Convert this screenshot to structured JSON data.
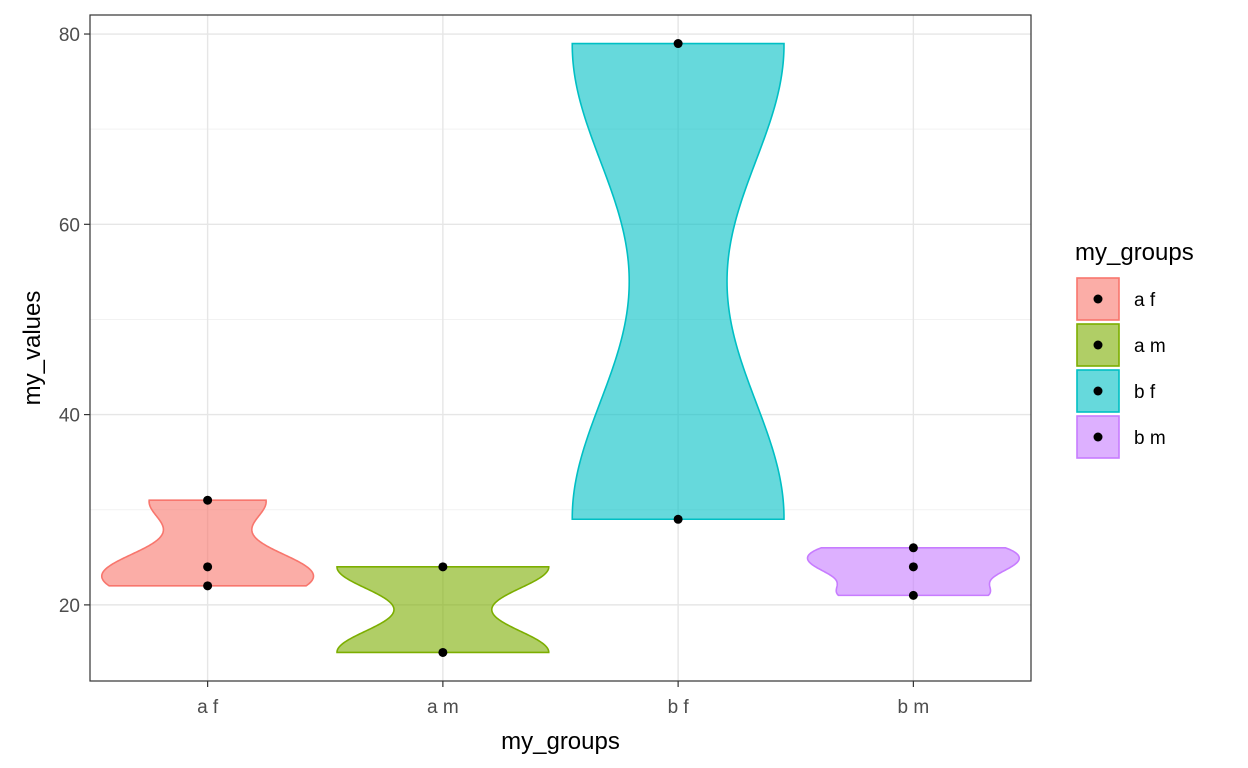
{
  "chart_data": {
    "type": "violin",
    "xlabel": "my_groups",
    "ylabel": "my_values",
    "ylim": [
      12,
      82
    ],
    "yticks": [
      20,
      40,
      60,
      80
    ],
    "grid": true,
    "legend_position": "right",
    "legend_title": "my_groups",
    "categories": [
      "a f",
      "a m",
      "b f",
      "b m"
    ],
    "series": [
      {
        "name": "a f",
        "color": "#F8766D",
        "values": [
          22,
          24,
          31
        ]
      },
      {
        "name": "a m",
        "color": "#7CAE00",
        "values": [
          15,
          24
        ]
      },
      {
        "name": "b f",
        "color": "#00BFC4",
        "values": [
          29,
          79
        ]
      },
      {
        "name": "b m",
        "color": "#C77CFF",
        "values": [
          21,
          24,
          26
        ]
      }
    ]
  }
}
